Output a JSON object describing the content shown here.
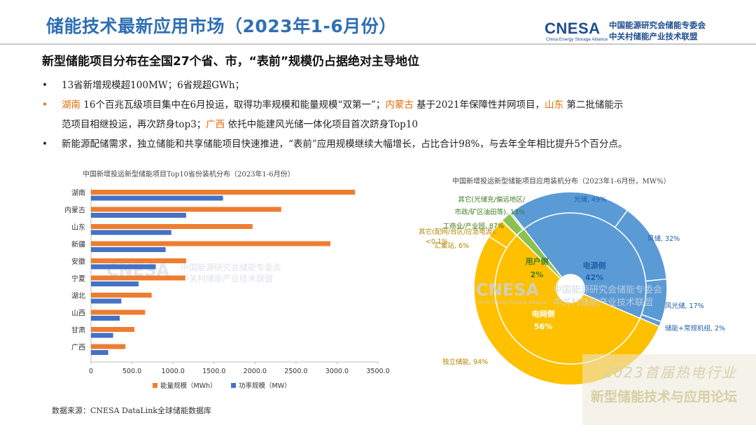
{
  "header": {
    "title": "储能技术最新应用市场（2023年1-6月份）",
    "logo_word": "CNESA",
    "logo_sub": "China Energy Storage Alliance",
    "logo_cn1": "中国能源研究会储能专委会",
    "logo_cn2": "中关村储能产业技术联盟"
  },
  "subhead": "新型储能项目分布在全国27个省、市，“表前”规模仍占据绝对主导地位",
  "bullets": {
    "b1": "13省新增规模超100MW；6省规超GWh；",
    "b2_hunan": "湖南",
    "b2_t1": " 16个百兆瓦级项目集中在6月投运，取得功率规模和能量规模“双第一”；",
    "b2_nmg": "内蒙古",
    "b2_t2": " 基于2021年保障性并网项目，",
    "b2_sd": "山东",
    "b2_t3": " 第二批储能示",
    "b2_t4": "范项目相继投运，再次跻身top3；",
    "b2_gx": "广西",
    "b2_t5": " 依托中能建风光储一体化项目首次跻身Top10",
    "b3": "新能源配储需求，独立储能和共享储能项目快速推进，“表前”应用规模继续大幅增长，占比合计98%，与去年全年相比提升5个百分点。"
  },
  "chart_data": [
    {
      "type": "bar",
      "orientation": "horizontal",
      "title": "中国新增投运新型储能项目Top10省份装机分布（2023年1-6月份）",
      "categories": [
        "湖南",
        "内蒙古",
        "山东",
        "新疆",
        "安徽",
        "宁夏",
        "湖北",
        "山西",
        "甘肃",
        "广西"
      ],
      "series": [
        {
          "name": "能量规模（MWh）",
          "color": "#ed7d31",
          "values": [
            3220,
            2320,
            1970,
            2920,
            1160,
            1150,
            740,
            660,
            530,
            420
          ]
        },
        {
          "name": "功率规模（MW）",
          "color": "#4472c4",
          "values": [
            1610,
            1160,
            980,
            910,
            790,
            580,
            370,
            350,
            270,
            210
          ]
        }
      ],
      "xlim": [
        0,
        3500
      ],
      "xticks": [
        "0",
        "500.0",
        "1000.0",
        "1500.0",
        "2000.0",
        "2500.0",
        "3000.0",
        "3500.0"
      ],
      "legend": "bottom"
    },
    {
      "type": "pie",
      "title": "中国新增投运新型储能项目应用装机分布（2023年1-6月份，MW%）",
      "inner_ring": [
        {
          "label": "电源侧",
          "value_label": "42%",
          "value": 42,
          "color": "#5b9bd5"
        },
        {
          "label": "电网侧",
          "value_label": "56%",
          "value": 56,
          "color": "#ffc000"
        },
        {
          "label": "用户侧",
          "value_label": "2%",
          "value": 2,
          "color": "#8cc152"
        }
      ],
      "outer_ring": [
        {
          "label": "光储, 49%",
          "value": 20.58,
          "color": "#5b9bd5"
        },
        {
          "label": "风储, 32%",
          "value": 13.44,
          "color": "#5b9bd5"
        },
        {
          "label": "风光储, 17%",
          "value": 7.14,
          "color": "#5b9bd5"
        },
        {
          "label": "储能+常规机组, 2%",
          "value": 0.84,
          "color": "#5b9bd5"
        },
        {
          "label": "独立储能, 94%",
          "value": 52.64,
          "color": "#ffc000"
        },
        {
          "label": "汇集站, 6%",
          "value": 3.36,
          "color": "#ffc000"
        },
        {
          "label": "其它(配网/台区/应急电源), <0.1%",
          "value": 0.05,
          "color": "#ffc000"
        },
        {
          "label": "工商业/产业园, 87%",
          "value": 1.74,
          "color": "#8cc152"
        },
        {
          "label": "其它(光储充/偏远地区/市政/矿区油田等), 13%",
          "value": 0.26,
          "color": "#8cc152"
        }
      ],
      "watermark": {
        "word": "CNESA",
        "sub": "China Energy Storage Alliance",
        "cn1": "中国能源研究会储能专委会",
        "cn2": "中关村储能产业技术联盟"
      }
    }
  ],
  "source": "数据来源：CNESA DataLink全球储能数据库",
  "forum": {
    "line1": "2023首届热电行业",
    "line2": "新型储能技术与应用论坛"
  }
}
